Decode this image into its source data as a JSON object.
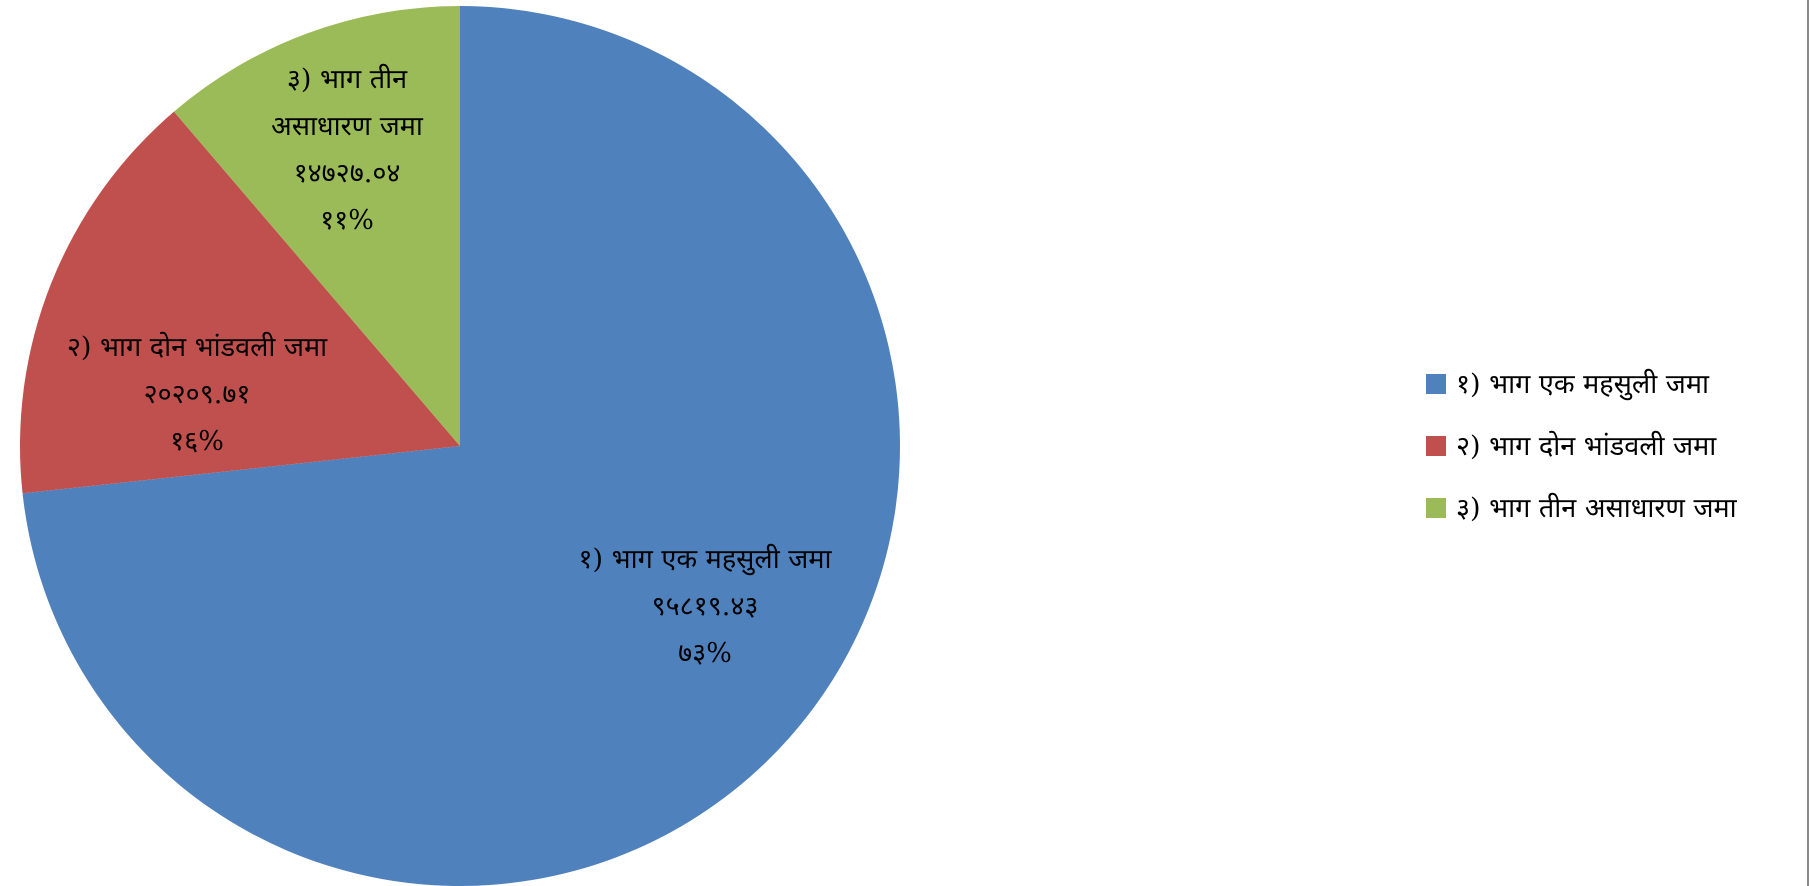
{
  "chart_data": {
    "type": "pie",
    "title": "",
    "legend_position": "right",
    "start_angle_deg": 0,
    "direction": "clockwise",
    "slices": [
      {
        "name": "१) भाग एक महसुली जमा",
        "value": 95819.43,
        "value_label": "९५८१९.४३",
        "percent_label": "७३%",
        "color": "#4F81BD"
      },
      {
        "name": "२) भाग दोन भांडवली जमा",
        "value": 20209.71,
        "value_label": "२०२०९.७१",
        "percent_label": "१६%",
        "color": "#C0504D"
      },
      {
        "name": "३) भाग तीन असाधारण जमा",
        "value": 14727.04,
        "value_label": "१४७२७.०४",
        "percent_label": "११%",
        "color": "#9BBB59"
      }
    ]
  }
}
